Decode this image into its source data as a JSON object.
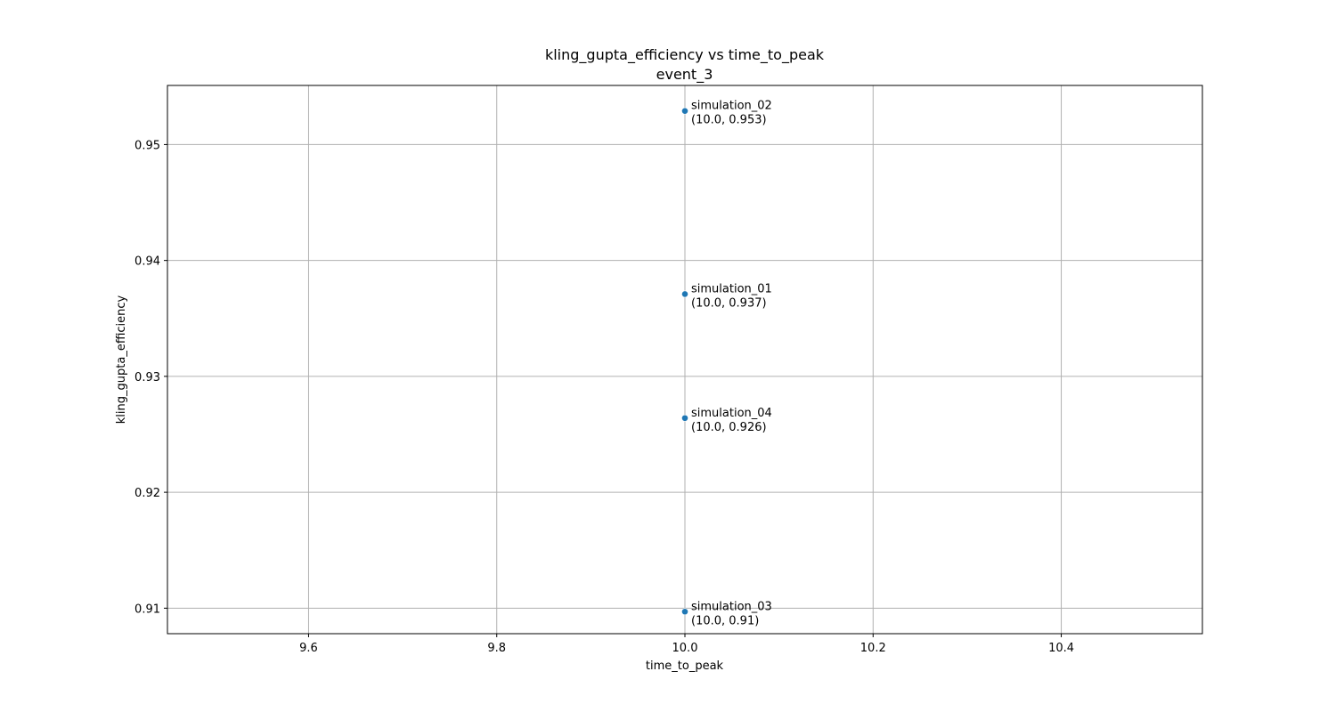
{
  "chart_data": {
    "type": "scatter",
    "title": "kling_gupta_efficiency vs time_to_peak",
    "subtitle": "event_3",
    "xlabel": "time_to_peak",
    "ylabel": "kling_gupta_efficiency",
    "xlim": [
      9.45,
      10.55
    ],
    "ylim": [
      0.9078,
      0.9551
    ],
    "xticks": [
      9.6,
      9.8,
      10.0,
      10.2,
      10.4
    ],
    "xtick_labels": [
      "9.6",
      "9.8",
      "10.0",
      "10.2",
      "10.4"
    ],
    "yticks": [
      0.91,
      0.92,
      0.93,
      0.94,
      0.95
    ],
    "ytick_labels": [
      "0.91",
      "0.92",
      "0.93",
      "0.94",
      "0.95"
    ],
    "grid": true,
    "point_color": "#1f77b4",
    "points": [
      {
        "label": "simulation_02",
        "coords": "(10.0, 0.953)",
        "x": 10.0,
        "y": 0.9529
      },
      {
        "label": "simulation_01",
        "coords": "(10.0, 0.937)",
        "x": 10.0,
        "y": 0.9371
      },
      {
        "label": "simulation_04",
        "coords": "(10.0, 0.926)",
        "x": 10.0,
        "y": 0.9264
      },
      {
        "label": "simulation_03",
        "coords": "(10.0, 0.91)",
        "x": 10.0,
        "y": 0.9097
      }
    ]
  }
}
